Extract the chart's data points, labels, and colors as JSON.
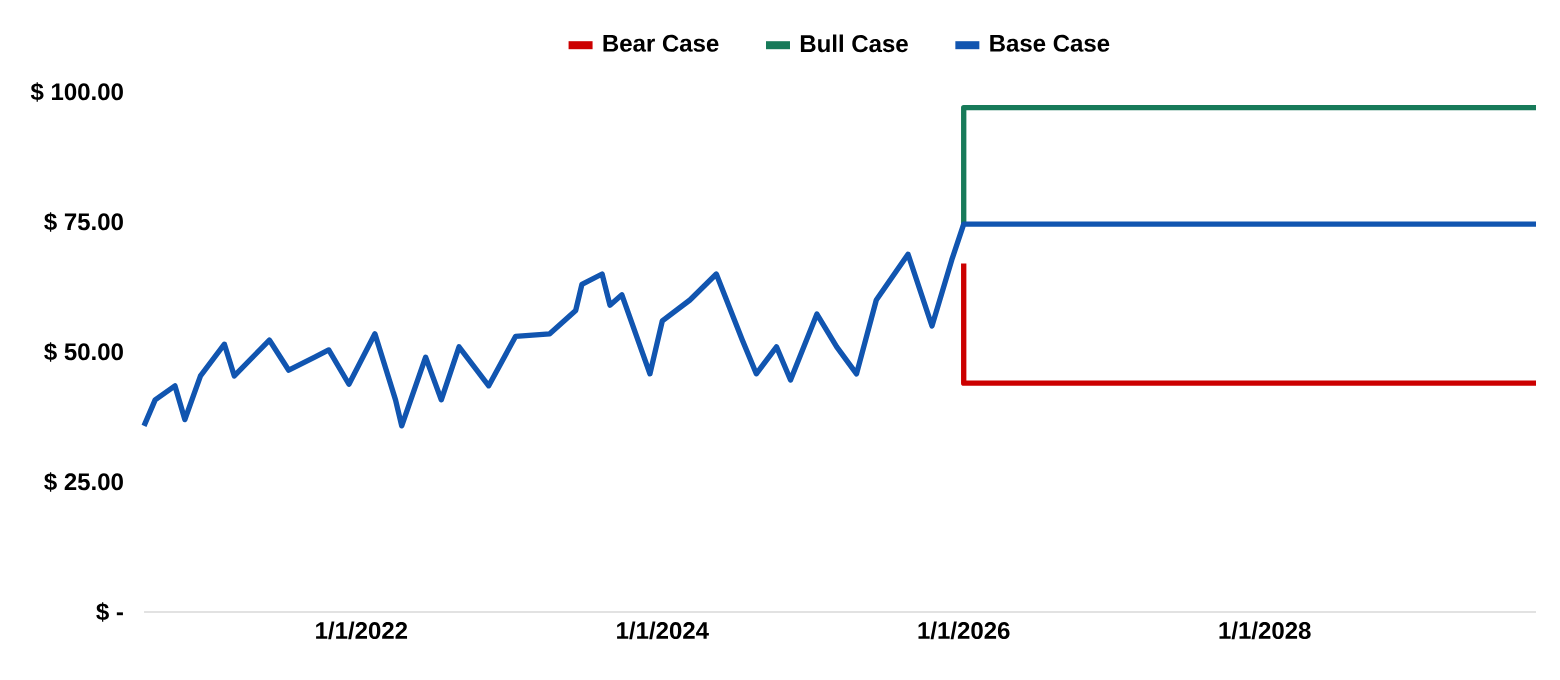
{
  "chart_data": {
    "type": "line",
    "legend": "top",
    "xlim": [
      "2020-07-23",
      "2029-10-20"
    ],
    "xticks": [
      {
        "value": "2022-01-01",
        "label": "1/1/2022"
      },
      {
        "value": "2024-01-01",
        "label": "1/1/2024"
      },
      {
        "value": "2026-01-01",
        "label": "1/1/2026"
      },
      {
        "value": "2028-01-01",
        "label": "1/1/2028"
      }
    ],
    "ylim": [
      0,
      100
    ],
    "yticks": [
      {
        "value": 0,
        "label": "$ -"
      },
      {
        "value": 25,
        "label": "$ 25.00"
      },
      {
        "value": 50,
        "label": "$ 50.00"
      },
      {
        "value": 75,
        "label": "$ 75.00"
      },
      {
        "value": 100,
        "label": "$ 100.00"
      }
    ],
    "series": [
      {
        "name": "Bear Case",
        "color": "#cc0000",
        "x": [
          "2026-01-01",
          "2026-01-01",
          "2029-10-20"
        ],
        "values": [
          67,
          44,
          44
        ]
      },
      {
        "name": "Bull Case",
        "color": "#177a59",
        "x": [
          "2026-01-01",
          "2026-01-01",
          "2029-10-20"
        ],
        "values": [
          74.6,
          97,
          97
        ]
      },
      {
        "name": "Base Case",
        "color": "#1155b0",
        "x": [
          "2020-07-23",
          "2020-08-19",
          "2020-10-06",
          "2020-10-30",
          "2020-12-07",
          "2021-02-03",
          "2021-02-27",
          "2021-05-23",
          "2021-07-09",
          "2021-09-10",
          "2021-10-14",
          "2021-12-02",
          "2022-02-03",
          "2022-03-25",
          "2022-04-09",
          "2022-06-06",
          "2022-07-14",
          "2022-08-26",
          "2022-11-06",
          "2023-01-10",
          "2023-04-03",
          "2023-06-05",
          "2023-06-20",
          "2023-08-08",
          "2023-08-27",
          "2023-09-25",
          "2023-12-02",
          "2024-01-01",
          "2024-03-08",
          "2024-05-11",
          "2024-07-13",
          "2024-08-16",
          "2024-10-04",
          "2024-11-07",
          "2025-01-10",
          "2025-02-27",
          "2025-04-16",
          "2025-06-03",
          "2025-08-19",
          "2025-10-16",
          "2025-12-03",
          "2026-01-01",
          "2029-10-20"
        ],
        "values": [
          35.8,
          40.8,
          43.5,
          37,
          45.4,
          51.5,
          45.4,
          52.3,
          46.5,
          49,
          50.4,
          43.8,
          53.5,
          40.8,
          35.8,
          49,
          40.8,
          51,
          43.5,
          53,
          53.5,
          58,
          63,
          65,
          59,
          61,
          45.8,
          56,
          60,
          65,
          52.3,
          45.8,
          51,
          44.6,
          57.3,
          51,
          45.8,
          60,
          68.8,
          55,
          67.7,
          74.6,
          74.6
        ]
      }
    ]
  }
}
